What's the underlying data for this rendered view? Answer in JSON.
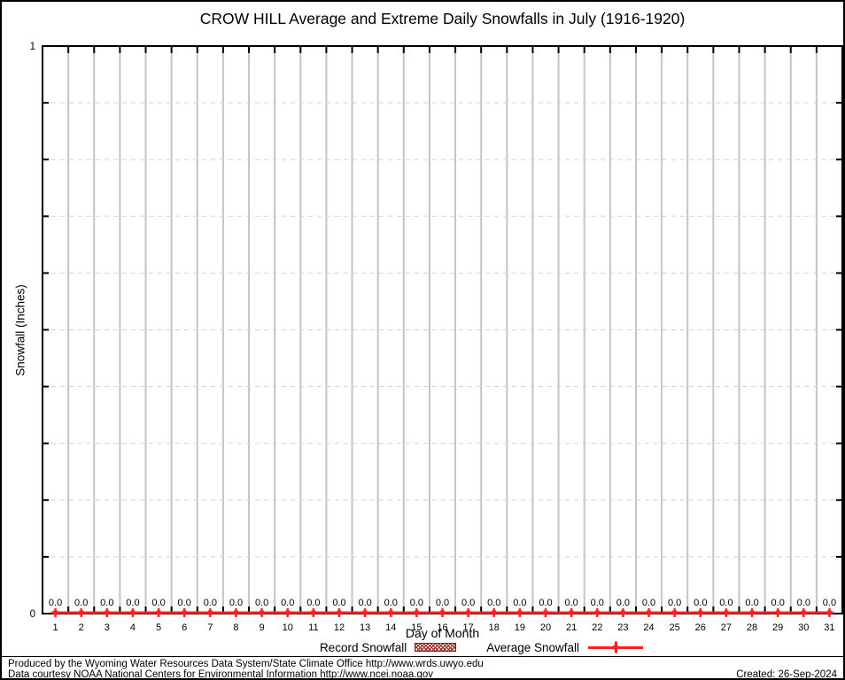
{
  "chart_data": {
    "type": "bar+line",
    "title": "CROW HILL Average and Extreme Daily Snowfalls in July (1916-1920)",
    "xlabel": "Day of Month",
    "ylabel": "Snowfall (Inches)",
    "xlim": [
      0.5,
      31.5
    ],
    "ylim": [
      0,
      1
    ],
    "ytick_labels": [
      {
        "value": 0,
        "label": "0"
      },
      {
        "value": 1,
        "label": "1"
      }
    ],
    "y_minor_step": 0.1,
    "grid": true,
    "legend_position": "bottom",
    "categories": [
      1,
      2,
      3,
      4,
      5,
      6,
      7,
      8,
      9,
      10,
      11,
      12,
      13,
      14,
      15,
      16,
      17,
      18,
      19,
      20,
      21,
      22,
      23,
      24,
      25,
      26,
      27,
      28,
      29,
      30,
      31
    ],
    "series": [
      {
        "name": "Record Snowfall",
        "type": "bar",
        "color": "#8b1a1a",
        "fill": "crosshatch",
        "values": [
          0,
          0,
          0,
          0,
          0,
          0,
          0,
          0,
          0,
          0,
          0,
          0,
          0,
          0,
          0,
          0,
          0,
          0,
          0,
          0,
          0,
          0,
          0,
          0,
          0,
          0,
          0,
          0,
          0,
          0,
          0
        ]
      },
      {
        "name": "Average Snowfall",
        "type": "line",
        "color": "#ff1f1f",
        "marker": "plus",
        "values": [
          0,
          0,
          0,
          0,
          0,
          0,
          0,
          0,
          0,
          0,
          0,
          0,
          0,
          0,
          0,
          0,
          0,
          0,
          0,
          0,
          0,
          0,
          0,
          0,
          0,
          0,
          0,
          0,
          0,
          0,
          0
        ]
      }
    ],
    "value_labels_shown": true,
    "value_label_decimals": 1
  },
  "colors": {
    "record": "#8b1a1a",
    "average": "#ff1f1f",
    "grid_vertical": "#c4c4c4",
    "grid_horizontal": "#d2d2d2",
    "axis": "#000000"
  },
  "footer": {
    "produced": "Produced by the Wyoming Water Resources Data System/State Climate Office http://www.wrds.uwyo.edu",
    "courtesy": "Data courtesy NOAA National Centers for Environmental Information http://www.ncei.noaa.gov",
    "created": "Created: 26-Sep-2024"
  }
}
